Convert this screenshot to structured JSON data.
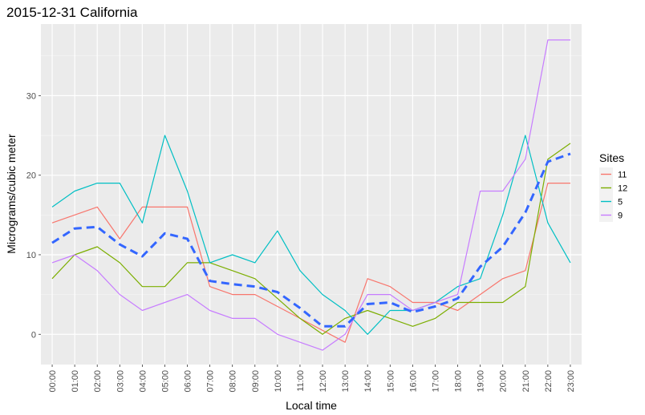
{
  "chart_data": {
    "type": "line",
    "title": "2015-12-31 California",
    "xlabel": "Local time",
    "ylabel": "Micrograms/cubic meter",
    "categories": [
      "00:00",
      "01:00",
      "02:00",
      "03:00",
      "04:00",
      "05:00",
      "06:00",
      "07:00",
      "08:00",
      "09:00",
      "10:00",
      "11:00",
      "12:00",
      "13:00",
      "14:00",
      "15:00",
      "16:00",
      "17:00",
      "18:00",
      "19:00",
      "20:00",
      "21:00",
      "22:00",
      "23:00"
    ],
    "ylim": [
      -3.8,
      39
    ],
    "yticks": [
      0,
      10,
      20,
      30
    ],
    "grid": true,
    "legend_title": "Sites",
    "legend_position": "right",
    "series": [
      {
        "name": "11",
        "color": "#F8766D",
        "dashed": false,
        "values": [
          14,
          15,
          16,
          12,
          16,
          16,
          16,
          6,
          5,
          5,
          3.5,
          2,
          0.5,
          -1,
          7,
          6,
          4,
          4,
          3,
          5,
          7,
          8,
          19,
          19
        ]
      },
      {
        "name": "12",
        "color": "#7CAE00",
        "dashed": false,
        "values": [
          7,
          10,
          11,
          9,
          6,
          6,
          9,
          9,
          8,
          7,
          4.5,
          2,
          0,
          2,
          3,
          2,
          1,
          2,
          4,
          4,
          4,
          6,
          22,
          24
        ]
      },
      {
        "name": "5",
        "color": "#00BFC4",
        "dashed": false,
        "values": [
          16,
          18,
          19,
          19,
          14,
          25,
          18,
          9,
          10,
          9,
          13,
          8,
          5,
          3,
          0,
          3,
          3,
          4,
          6,
          7,
          15,
          25,
          14,
          9
        ]
      },
      {
        "name": "9",
        "color": "#C77CFF",
        "dashed": false,
        "values": [
          9,
          10,
          8,
          5,
          3,
          4,
          5,
          3,
          2,
          2,
          0,
          -1,
          -2,
          0,
          5,
          5,
          3,
          4,
          5,
          18,
          18,
          22,
          37,
          37
        ]
      },
      {
        "color": "#3366FF",
        "dashed": true,
        "values": [
          11.5,
          13.3,
          13.5,
          11.3,
          9.8,
          12.7,
          12,
          6.7,
          6.3,
          6,
          5.3,
          3.3,
          1,
          1,
          3.8,
          4,
          2.8,
          3.5,
          4.5,
          8.5,
          11,
          15.3,
          21.7,
          22.7
        ]
      }
    ]
  }
}
